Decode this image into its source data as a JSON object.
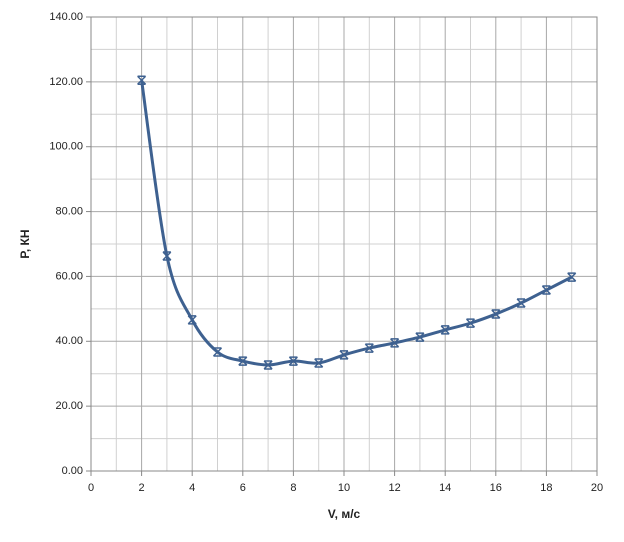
{
  "chart_data": {
    "type": "line",
    "x_label": "V, м/с",
    "y_label": "P, КН",
    "x": [
      2,
      3,
      4,
      5,
      6,
      7,
      8,
      9,
      10,
      11,
      12,
      13,
      14,
      15,
      16,
      17,
      18,
      19
    ],
    "series": [
      {
        "name": "P",
        "color": "#3e6190",
        "values": [
          120.5,
          66.3,
          46.6,
          36.7,
          33.9,
          32.7,
          33.9,
          33.3,
          35.8,
          37.9,
          39.5,
          41.3,
          43.5,
          45.6,
          48.4,
          51.8,
          55.8,
          59.8
        ]
      }
    ],
    "xlim": [
      0,
      20
    ],
    "xticks": [
      0,
      2,
      4,
      6,
      8,
      10,
      12,
      14,
      16,
      18,
      20
    ],
    "x_minor_ticks": [
      1,
      3,
      5,
      7,
      9,
      11,
      13,
      15,
      17,
      19
    ],
    "ylim": [
      0,
      140
    ],
    "yticks": [
      {
        "value": 0,
        "label": "0.00"
      },
      {
        "value": 20,
        "label": "20.00"
      },
      {
        "value": 40,
        "label": "40.00"
      },
      {
        "value": 60,
        "label": "60.00"
      },
      {
        "value": 80,
        "label": "80.00"
      },
      {
        "value": 100,
        "label": "100.00"
      },
      {
        "value": 120,
        "label": "120.00"
      },
      {
        "value": 140,
        "label": "140.00"
      }
    ],
    "y_minor_ticks": [
      10,
      30,
      50,
      70,
      90,
      110,
      130
    ],
    "grid": true,
    "smooth": true
  }
}
